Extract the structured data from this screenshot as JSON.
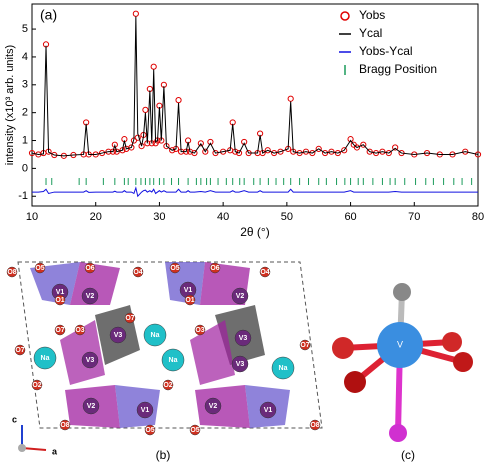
{
  "chart_data": {
    "type": "line",
    "panel_label": "(a)",
    "xlabel": "2θ (°)",
    "ylabel": "intensity (x10³ arb. units)",
    "xlim": [
      10,
      80
    ],
    "xticks": [
      10,
      20,
      30,
      40,
      50,
      60,
      70,
      80
    ],
    "ylim": [
      -1.35,
      5.9
    ],
    "yticks": [
      -1,
      0,
      1,
      2,
      3,
      4,
      5
    ],
    "legend": "upper right",
    "x": [
      10,
      11,
      11.8,
      12.2,
      12.6,
      13.5,
      15,
      16.5,
      18.1,
      18.5,
      18.9,
      20,
      21,
      22,
      22.7,
      23,
      23.3,
      24.2,
      24.5,
      24.8,
      25.6,
      26,
      26.3,
      26.6,
      27.2,
      27.5,
      27.8,
      28.1,
      28.5,
      28.8,
      29.1,
      29.4,
      29.7,
      30,
      30.3,
      30.7,
      31.1,
      32,
      32.6,
      33,
      33.4,
      34.2,
      34.5,
      34.8,
      35.5,
      36.5,
      37.2,
      38,
      38.8,
      40,
      41.1,
      41.5,
      41.9,
      42.5,
      43.3,
      44,
      45.4,
      45.8,
      46.2,
      47,
      48,
      49,
      50.2,
      50.6,
      51,
      52,
      53,
      54,
      55,
      56,
      57,
      58,
      59,
      60,
      60.5,
      61,
      62,
      63,
      64,
      65,
      66,
      67,
      68,
      70,
      72,
      74,
      76,
      78,
      80
    ],
    "series": [
      {
        "name": "Yobs",
        "color": "#e00000",
        "marker": "circle",
        "values": [
          0.55,
          0.5,
          0.55,
          4.45,
          0.6,
          0.48,
          0.45,
          0.48,
          0.5,
          1.65,
          0.5,
          0.5,
          0.55,
          0.6,
          0.6,
          0.85,
          0.6,
          0.65,
          1.05,
          0.7,
          0.75,
          1.0,
          5.55,
          1.1,
          0.8,
          1.2,
          2.1,
          0.9,
          2.85,
          0.9,
          3.65,
          0.9,
          1.0,
          2.25,
          1.0,
          3.0,
          0.8,
          0.65,
          0.7,
          2.45,
          0.6,
          0.6,
          1.0,
          0.6,
          0.55,
          0.9,
          0.6,
          0.95,
          0.55,
          0.6,
          0.65,
          1.65,
          0.6,
          0.55,
          0.95,
          0.55,
          0.55,
          1.25,
          0.55,
          0.65,
          0.55,
          0.6,
          0.7,
          2.5,
          0.6,
          0.55,
          0.6,
          0.55,
          0.7,
          0.55,
          0.6,
          0.55,
          0.65,
          1.05,
          0.85,
          0.75,
          0.85,
          0.6,
          0.55,
          0.6,
          0.55,
          0.75,
          0.55,
          0.5,
          0.55,
          0.5,
          0.5,
          0.6,
          0.5
        ]
      },
      {
        "name": "Ycal",
        "color": "#000000",
        "marker": "line",
        "values": [
          0.55,
          0.5,
          0.52,
          4.4,
          0.58,
          0.48,
          0.45,
          0.48,
          0.5,
          1.6,
          0.5,
          0.5,
          0.55,
          0.6,
          0.6,
          0.82,
          0.6,
          0.65,
          1.0,
          0.7,
          0.75,
          1.05,
          5.45,
          1.25,
          0.8,
          1.15,
          2.0,
          0.9,
          2.8,
          0.9,
          3.55,
          0.95,
          1.0,
          2.2,
          1.0,
          2.95,
          0.8,
          0.65,
          0.7,
          2.35,
          0.6,
          0.6,
          0.95,
          0.6,
          0.55,
          0.88,
          0.6,
          0.9,
          0.55,
          0.6,
          0.65,
          1.6,
          0.6,
          0.55,
          0.9,
          0.55,
          0.55,
          1.2,
          0.55,
          0.65,
          0.55,
          0.6,
          0.7,
          2.4,
          0.6,
          0.55,
          0.6,
          0.55,
          0.7,
          0.55,
          0.6,
          0.55,
          0.65,
          1.0,
          0.85,
          0.75,
          0.85,
          0.6,
          0.55,
          0.6,
          0.55,
          0.72,
          0.55,
          0.5,
          0.55,
          0.5,
          0.5,
          0.6,
          0.5
        ]
      },
      {
        "name": "Yobs-Ycal",
        "color": "#1010e0",
        "marker": "line",
        "values": [
          -0.85,
          -0.85,
          -0.83,
          -0.75,
          -0.9,
          -0.85,
          -0.85,
          -0.85,
          -0.85,
          -0.8,
          -0.86,
          -0.85,
          -0.85,
          -0.85,
          -0.85,
          -0.82,
          -0.85,
          -0.85,
          -0.8,
          -0.85,
          -0.85,
          -0.9,
          -0.7,
          -1.0,
          -0.85,
          -0.8,
          -0.78,
          -0.85,
          -0.8,
          -0.85,
          -0.75,
          -0.9,
          -0.85,
          -0.8,
          -0.85,
          -0.8,
          -0.85,
          -0.85,
          -0.85,
          -0.75,
          -0.85,
          -0.85,
          -0.8,
          -0.85,
          -0.85,
          -0.83,
          -0.85,
          -0.8,
          -0.85,
          -0.85,
          -0.85,
          -0.8,
          -0.85,
          -0.85,
          -0.8,
          -0.85,
          -0.85,
          -0.8,
          -0.85,
          -0.85,
          -0.85,
          -0.85,
          -0.85,
          -0.75,
          -0.85,
          -0.85,
          -0.85,
          -0.85,
          -0.85,
          -0.85,
          -0.85,
          -0.85,
          -0.85,
          -0.8,
          -0.85,
          -0.85,
          -0.85,
          -0.85,
          -0.85,
          -0.85,
          -0.85,
          -0.83,
          -0.85,
          -0.85,
          -0.85,
          -0.85,
          -0.85,
          -0.85,
          -0.85
        ]
      }
    ],
    "bragg": {
      "name": "Bragg Position",
      "color": "#1a9a5a",
      "x": [
        12.2,
        13.1,
        17.4,
        18.5,
        21.2,
        23.0,
        24.5,
        25.1,
        26.3,
        27.1,
        27.8,
        28.5,
        29.1,
        30.0,
        30.7,
        31.9,
        33.0,
        34.5,
        35.8,
        36.5,
        37.4,
        38.0,
        39.2,
        40.5,
        41.5,
        42.6,
        43.3,
        44.8,
        45.8,
        47.1,
        48.3,
        49.5,
        50.6,
        52.0,
        53.4,
        55.0,
        56.2,
        57.8,
        59.1,
        60.0,
        61.2,
        62.0,
        63.5,
        65.0,
        66.2,
        67.0,
        68.5,
        70.2,
        71.8,
        73.0,
        74.6,
        76.2,
        77.5,
        79.0
      ]
    }
  },
  "structure": {
    "label": "(b)",
    "atoms": [
      "Na",
      "Na",
      "Na",
      "Na",
      "V1",
      "V2",
      "V1",
      "V2",
      "V3",
      "V3",
      "V3",
      "V3",
      "V2",
      "V1",
      "V2",
      "V1",
      "O5",
      "O6",
      "O4",
      "O5",
      "O6",
      "O4",
      "O8",
      "O7",
      "O7",
      "O2",
      "O2",
      "O3",
      "O3",
      "O8",
      "O8",
      "O5",
      "O5",
      "O1",
      "O1",
      "O7",
      "O7"
    ],
    "axes": [
      "c",
      "a"
    ]
  },
  "coordination": {
    "label": "(c)",
    "center": "V"
  }
}
